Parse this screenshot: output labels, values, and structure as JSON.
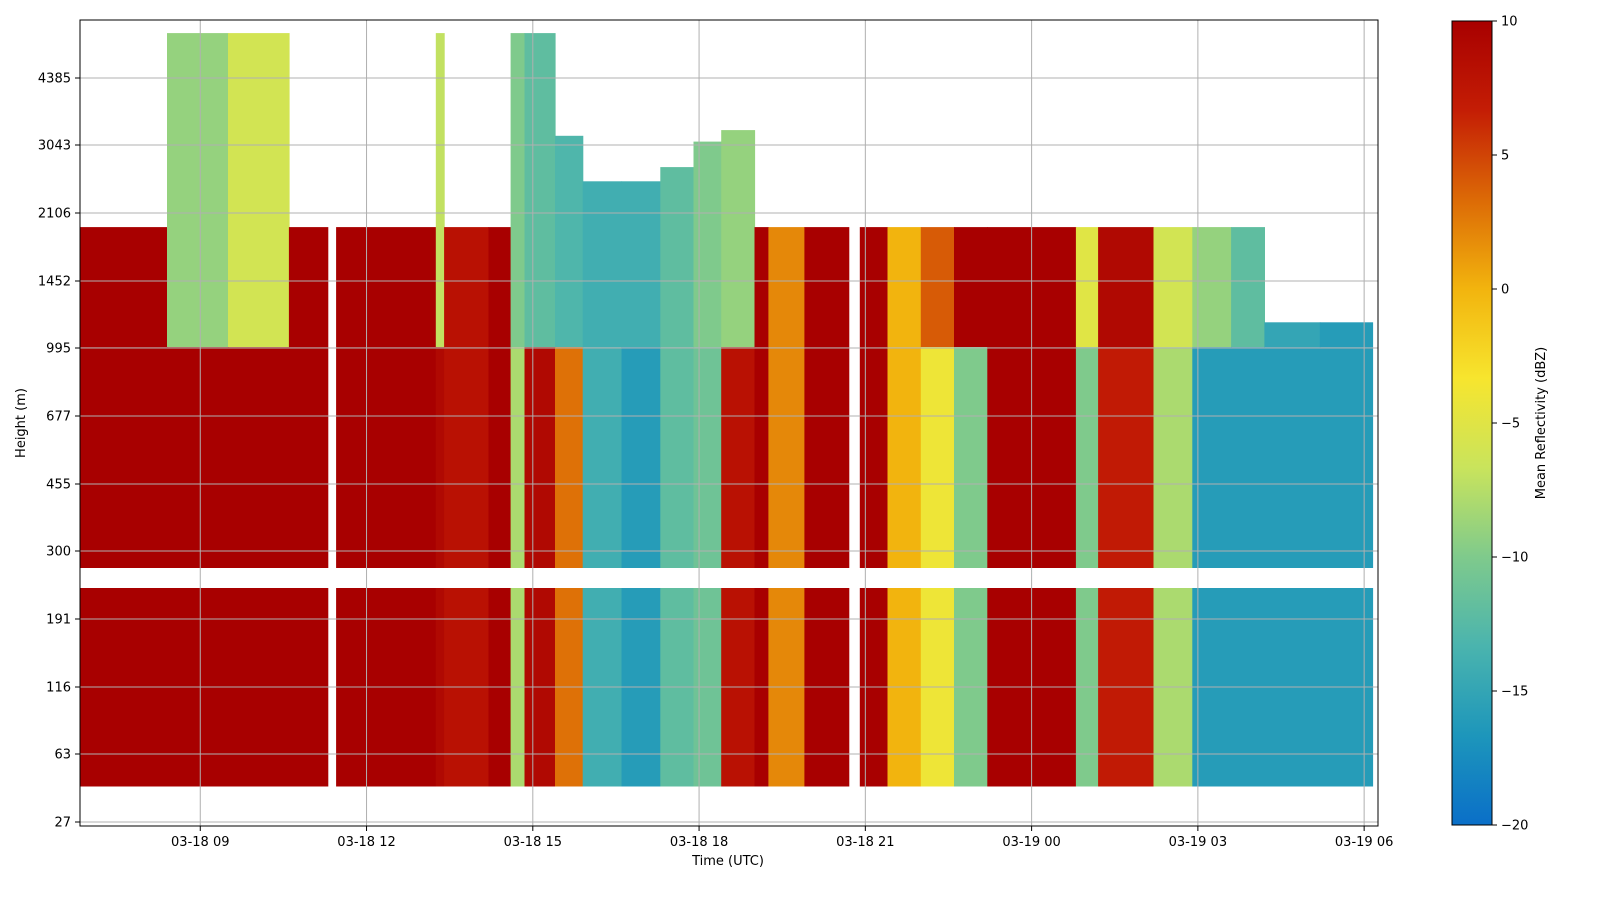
{
  "chart_data": {
    "type": "heatmap",
    "title": "",
    "xlabel": "Time (UTC)",
    "ylabel": "Height (m)",
    "x_ticks": [
      "03-18 09",
      "03-18 12",
      "03-18 15",
      "03-18 18",
      "03-18 21",
      "03-19 00",
      "03-19 03",
      "03-19 06"
    ],
    "y_ticks": [
      "27",
      "63",
      "116",
      "191",
      "300",
      "455",
      "677",
      "995",
      "1452",
      "2106",
      "3043",
      "4385"
    ],
    "xlim": [
      "03-18 06:50",
      "03-19 06:15"
    ],
    "grid": true,
    "colorbar": {
      "label": "Mean Reflectivity (dBZ)",
      "range": [
        -20,
        10
      ],
      "ticks": [
        10,
        5,
        0,
        -5,
        -10,
        -15,
        -20
      ],
      "colors": [
        "#0a6fc8",
        "#1d96bb",
        "#4ab4ae",
        "#7fca8c",
        "#c9e45c",
        "#f7e52e",
        "#f2b40e",
        "#dc6a06",
        "#c41d05",
        "#a80000"
      ]
    },
    "columns": [
      {
        "t0": 6.83,
        "t1": 8.4,
        "top": 1950,
        "bottom": 42,
        "value": 10,
        "upper": 10
      },
      {
        "t0": 8.4,
        "t1": 9.5,
        "top": 5600,
        "bottom": 42,
        "value": 10,
        "upper": -9
      },
      {
        "t0": 9.5,
        "t1": 10.6,
        "top": 5600,
        "bottom": 42,
        "value": 10,
        "upper": -6
      },
      {
        "t0": 10.6,
        "t1": 11.3,
        "top": 1950,
        "bottom": 42,
        "value": 10,
        "upper": 10
      },
      {
        "t0": 11.45,
        "t1": 12.0,
        "top": 1950,
        "bottom": 42,
        "value": 10,
        "upper": 10
      },
      {
        "t0": 12.0,
        "t1": 13.25,
        "top": 1950,
        "bottom": 42,
        "value": 10,
        "upper": 10
      },
      {
        "t0": 13.25,
        "t1": 13.4,
        "top": 5600,
        "bottom": 42,
        "value": 9,
        "upper": -7
      },
      {
        "t0": 13.4,
        "t1": 14.2,
        "top": 1950,
        "bottom": 42,
        "value": 8,
        "upper": 8
      },
      {
        "t0": 14.2,
        "t1": 14.6,
        "top": 1950,
        "bottom": 42,
        "value": 10,
        "upper": 10
      },
      {
        "t0": 14.6,
        "t1": 14.85,
        "top": 5600,
        "bottom": 42,
        "value": -8,
        "upper": -10
      },
      {
        "t0": 14.85,
        "t1": 15.4,
        "top": 5600,
        "bottom": 42,
        "value": 9,
        "upper": -12
      },
      {
        "t0": 15.4,
        "t1": 15.9,
        "top": 3200,
        "bottom": 42,
        "value": 3,
        "upper": -13
      },
      {
        "t0": 15.9,
        "t1": 16.6,
        "top": 2500,
        "bottom": 42,
        "value": -14,
        "upper": -14
      },
      {
        "t0": 16.6,
        "t1": 17.3,
        "top": 2500,
        "bottom": 42,
        "value": -16,
        "upper": -14
      },
      {
        "t0": 17.3,
        "t1": 17.9,
        "top": 2700,
        "bottom": 42,
        "value": -12,
        "upper": -12
      },
      {
        "t0": 17.9,
        "t1": 18.4,
        "top": 3100,
        "bottom": 42,
        "value": -11,
        "upper": -10
      },
      {
        "t0": 18.4,
        "t1": 19.0,
        "top": 3300,
        "bottom": 42,
        "value": 8,
        "upper": -9
      },
      {
        "t0": 19.0,
        "t1": 19.25,
        "top": 1950,
        "bottom": 42,
        "value": 10,
        "upper": 10
      },
      {
        "t0": 19.25,
        "t1": 19.9,
        "top": 1950,
        "bottom": 42,
        "value": 2,
        "upper": 2
      },
      {
        "t0": 19.9,
        "t1": 20.7,
        "top": 1950,
        "bottom": 42,
        "value": 10,
        "upper": 10
      },
      {
        "t0": 20.9,
        "t1": 21.4,
        "top": 1950,
        "bottom": 42,
        "value": 10,
        "upper": 10
      },
      {
        "t0": 21.4,
        "t1": 22.0,
        "top": 1950,
        "bottom": 42,
        "value": 0,
        "upper": 0
      },
      {
        "t0": 22.0,
        "t1": 22.6,
        "top": 1950,
        "bottom": 42,
        "value": -4,
        "upper": 4
      },
      {
        "t0": 22.6,
        "t1": 23.2,
        "top": 1950,
        "bottom": 42,
        "value": -10,
        "upper": 10
      },
      {
        "t0": 23.2,
        "t1": 24.8,
        "top": 1950,
        "bottom": 42,
        "value": 10,
        "upper": 10
      },
      {
        "t0": 24.8,
        "t1": 25.2,
        "top": 1950,
        "bottom": 42,
        "value": -10,
        "upper": -5
      },
      {
        "t0": 25.2,
        "t1": 26.2,
        "top": 1950,
        "bottom": 42,
        "value": 7,
        "upper": 9
      },
      {
        "t0": 26.2,
        "t1": 26.9,
        "top": 1950,
        "bottom": 42,
        "value": -8,
        "upper": -6
      },
      {
        "t0": 26.9,
        "t1": 27.6,
        "top": 1950,
        "bottom": 42,
        "value": -16,
        "upper": -9
      },
      {
        "t0": 27.6,
        "t1": 28.2,
        "top": 1950,
        "bottom": 42,
        "value": -16,
        "upper": -12
      },
      {
        "t0": 28.2,
        "t1": 29.2,
        "top": 1150,
        "bottom": 42,
        "value": -16,
        "upper": -15
      },
      {
        "t0": 29.2,
        "t1": 30.15,
        "top": 1150,
        "bottom": 42,
        "value": -16,
        "upper": -16
      }
    ]
  },
  "colors": {
    "grid": "#b0b0b0",
    "gap": "#ffffff"
  }
}
